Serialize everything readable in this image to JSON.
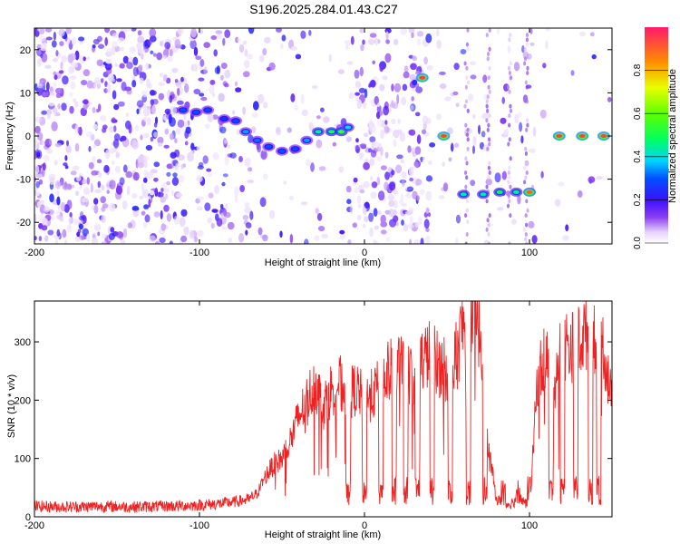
{
  "title": "S196.2025.284.01.43.C27",
  "chart_data": [
    {
      "type": "heatmap",
      "title": "",
      "xlabel": "Height of straight line (km)",
      "ylabel": "Frequency (Hz)",
      "xlim": [
        -200,
        150
      ],
      "ylim": [
        -25,
        25
      ],
      "xticks": [
        -200,
        -100,
        0,
        100
      ],
      "xtick_labels": [
        "-200",
        "-100",
        "0",
        "100"
      ],
      "yticks": [
        20,
        10,
        0,
        -10,
        -20
      ],
      "ytick_labels": [
        "20",
        "10",
        "0",
        "-10",
        "-20"
      ],
      "colorbar": {
        "label": "Normalized spectral amplitude",
        "range": [
          0,
          1
        ],
        "ticks": [
          0.0,
          0.2,
          0.4,
          0.6,
          0.8
        ],
        "tick_labels": [
          "0.0",
          "0.2",
          "0.4",
          "0.6",
          "0.8"
        ]
      },
      "ridge": {
        "name": "dominant frequency track",
        "points": [
          {
            "x": -110,
            "y": 6,
            "v": 0.3
          },
          {
            "x": -102,
            "y": 5.5,
            "v": 0.3
          },
          {
            "x": -95,
            "y": 6,
            "v": 0.28
          },
          {
            "x": -85,
            "y": 4,
            "v": 0.25
          },
          {
            "x": -78,
            "y": 3.5,
            "v": 0.28
          },
          {
            "x": -72,
            "y": 1,
            "v": 0.35
          },
          {
            "x": -65,
            "y": -1,
            "v": 0.32
          },
          {
            "x": -58,
            "y": -2.5,
            "v": 0.3
          },
          {
            "x": -50,
            "y": -3.5,
            "v": 0.3
          },
          {
            "x": -42,
            "y": -3,
            "v": 0.28
          },
          {
            "x": -35,
            "y": -1,
            "v": 0.35
          },
          {
            "x": -28,
            "y": 1,
            "v": 0.45
          },
          {
            "x": -20,
            "y": 1,
            "v": 0.5
          },
          {
            "x": -14,
            "y": 1,
            "v": 0.55
          },
          {
            "x": -10,
            "y": 2,
            "v": 0.4
          },
          {
            "x": 35,
            "y": 13.5,
            "v": 0.95
          },
          {
            "x": 48,
            "y": 0,
            "v": 0.95
          },
          {
            "x": 60,
            "y": -13.5,
            "v": 0.45
          },
          {
            "x": 72,
            "y": -13.5,
            "v": 0.45
          },
          {
            "x": 82,
            "y": -13,
            "v": 0.5
          },
          {
            "x": 92,
            "y": -13,
            "v": 0.45
          },
          {
            "x": 100,
            "y": -13,
            "v": 0.9
          },
          {
            "x": 118,
            "y": 0,
            "v": 0.95
          },
          {
            "x": 132,
            "y": 0,
            "v": 0.95
          },
          {
            "x": 145,
            "y": 0,
            "v": 0.95
          }
        ]
      }
    },
    {
      "type": "line",
      "title": "",
      "xlabel": "Height of straight line (km)",
      "ylabel": "SNR (10 * v/v)",
      "xlim": [
        -200,
        150
      ],
      "ylim": [
        0,
        370
      ],
      "xticks": [
        -200,
        -100,
        0,
        100
      ],
      "xtick_labels": [
        "-200",
        "-100",
        "0",
        "100"
      ],
      "yticks": [
        0,
        100,
        200,
        300
      ],
      "ytick_labels": [
        "0",
        "100",
        "200",
        "300"
      ],
      "color": "#ee2222",
      "series": [
        {
          "name": "SNR",
          "x": [
            -200,
            -180,
            -160,
            -140,
            -120,
            -100,
            -90,
            -80,
            -70,
            -65,
            -60,
            -55,
            -50,
            -45,
            -40,
            -35,
            -30,
            -25,
            -20,
            -15,
            -10,
            -5,
            0,
            5,
            10,
            15,
            20,
            25,
            30,
            35,
            40,
            45,
            50,
            55,
            60,
            65,
            70,
            75,
            80,
            85,
            90,
            95,
            100,
            105,
            110,
            115,
            120,
            125,
            130,
            135,
            140,
            145,
            150
          ],
          "y": [
            18,
            17,
            18,
            17,
            18,
            20,
            22,
            25,
            30,
            40,
            70,
            90,
            100,
            130,
            170,
            200,
            230,
            190,
            220,
            230,
            210,
            220,
            200,
            210,
            230,
            250,
            260,
            250,
            240,
            270,
            280,
            260,
            250,
            270,
            330,
            340,
            320,
            120,
            30,
            20,
            25,
            30,
            20,
            240,
            280,
            230,
            300,
            290,
            300,
            320,
            310,
            290,
            190
          ]
        }
      ],
      "dropout_x": [
        -10,
        0,
        10,
        18,
        25,
        32,
        41,
        52,
        63,
        73,
        84,
        93,
        100,
        113,
        120,
        128,
        137,
        142
      ]
    }
  ]
}
